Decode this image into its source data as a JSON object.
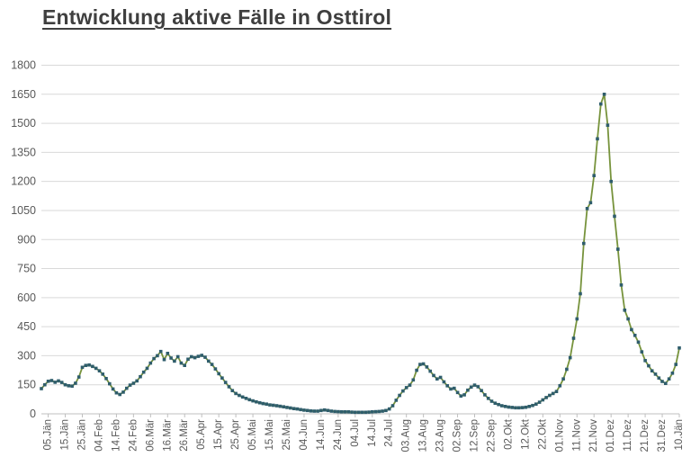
{
  "page": {
    "title": "Entwicklung aktive Fälle in Osttirol"
  },
  "colors": {
    "title_text": "#3f3f3f",
    "axis_text": "#595959",
    "gridline": "#d9d9d9",
    "axis_line": "#bfbfbf",
    "background": "#ffffff"
  },
  "chart_data": {
    "type": "line",
    "title": "Entwicklung aktive Fälle in Osttirol",
    "xlabel": "",
    "ylabel": "",
    "grid": true,
    "legend": false,
    "ylim": [
      0,
      1800
    ],
    "y_tick_interval": 150,
    "y_ticks": [
      0,
      150,
      300,
      450,
      600,
      750,
      900,
      1050,
      1200,
      1350,
      1500,
      1650,
      1800
    ],
    "x_tick_labels": [
      "05.Jän",
      "15.Jän",
      "25.Jän",
      "04.Feb",
      "14.Feb",
      "24.Feb",
      "06.Mär",
      "16.Mär",
      "26.Mär",
      "05.Apr",
      "15.Apr",
      "25.Apr",
      "05.Mai",
      "15.Mai",
      "25.Mai",
      "04.Jun",
      "14.Jun",
      "24.Jun",
      "04.Jul",
      "14.Jul",
      "24.Jul",
      "03.Aug",
      "13.Aug",
      "23.Aug",
      "02.Sep",
      "12.Sep",
      "22.Sep",
      "02.Okt",
      "12.Okt",
      "22.Okt",
      "01.Nov",
      "11.Nov",
      "21.Nov",
      "01.Dez",
      "11.Dez",
      "21.Dez",
      "31.Dez",
      "10.Jän"
    ],
    "first_tick_day_index": 4,
    "days_per_tick": 10,
    "x_total_days": 374,
    "series_step_days": 2,
    "peak_value": 1650,
    "series": [
      {
        "marker": "square",
        "marker_color": "#2f5d6c",
        "line_color": "#77933c",
        "values": [
          130,
          150,
          168,
          172,
          163,
          170,
          162,
          150,
          145,
          143,
          158,
          190,
          240,
          250,
          252,
          245,
          235,
          222,
          205,
          182,
          155,
          128,
          108,
          100,
          112,
          132,
          148,
          158,
          170,
          192,
          215,
          235,
          262,
          285,
          300,
          322,
          280,
          312,
          288,
          272,
          295,
          262,
          250,
          282,
          295,
          290,
          297,
          302,
          292,
          272,
          255,
          232,
          207,
          185,
          162,
          140,
          120,
          105,
          95,
          87,
          80,
          73,
          67,
          62,
          57,
          53,
          50,
          46,
          44,
          42,
          39,
          36,
          33,
          30,
          27,
          25,
          22,
          19,
          17,
          15,
          14,
          14,
          17,
          20,
          17,
          14,
          12,
          11,
          10,
          10,
          10,
          9,
          8,
          8,
          8,
          8,
          9,
          10,
          11,
          12,
          14,
          17,
          25,
          42,
          70,
          95,
          118,
          135,
          148,
          175,
          225,
          255,
          258,
          242,
          220,
          198,
          180,
          188,
          165,
          145,
          128,
          132,
          110,
          92,
          98,
          122,
          138,
          148,
          140,
          120,
          98,
          80,
          65,
          55,
          48,
          42,
          38,
          35,
          33,
          31,
          31,
          32,
          34,
          38,
          43,
          50,
          60,
          72,
          84,
          95,
          105,
          115,
          145,
          180,
          230,
          290,
          390,
          490,
          620,
          880,
          1060,
          1090,
          1230,
          1420,
          1600,
          1650,
          1490,
          1200,
          1020,
          850,
          665,
          535,
          490,
          435,
          405,
          370,
          320,
          275,
          248,
          222,
          205,
          185,
          167,
          157,
          180,
          210,
          255,
          340
        ]
      }
    ]
  }
}
